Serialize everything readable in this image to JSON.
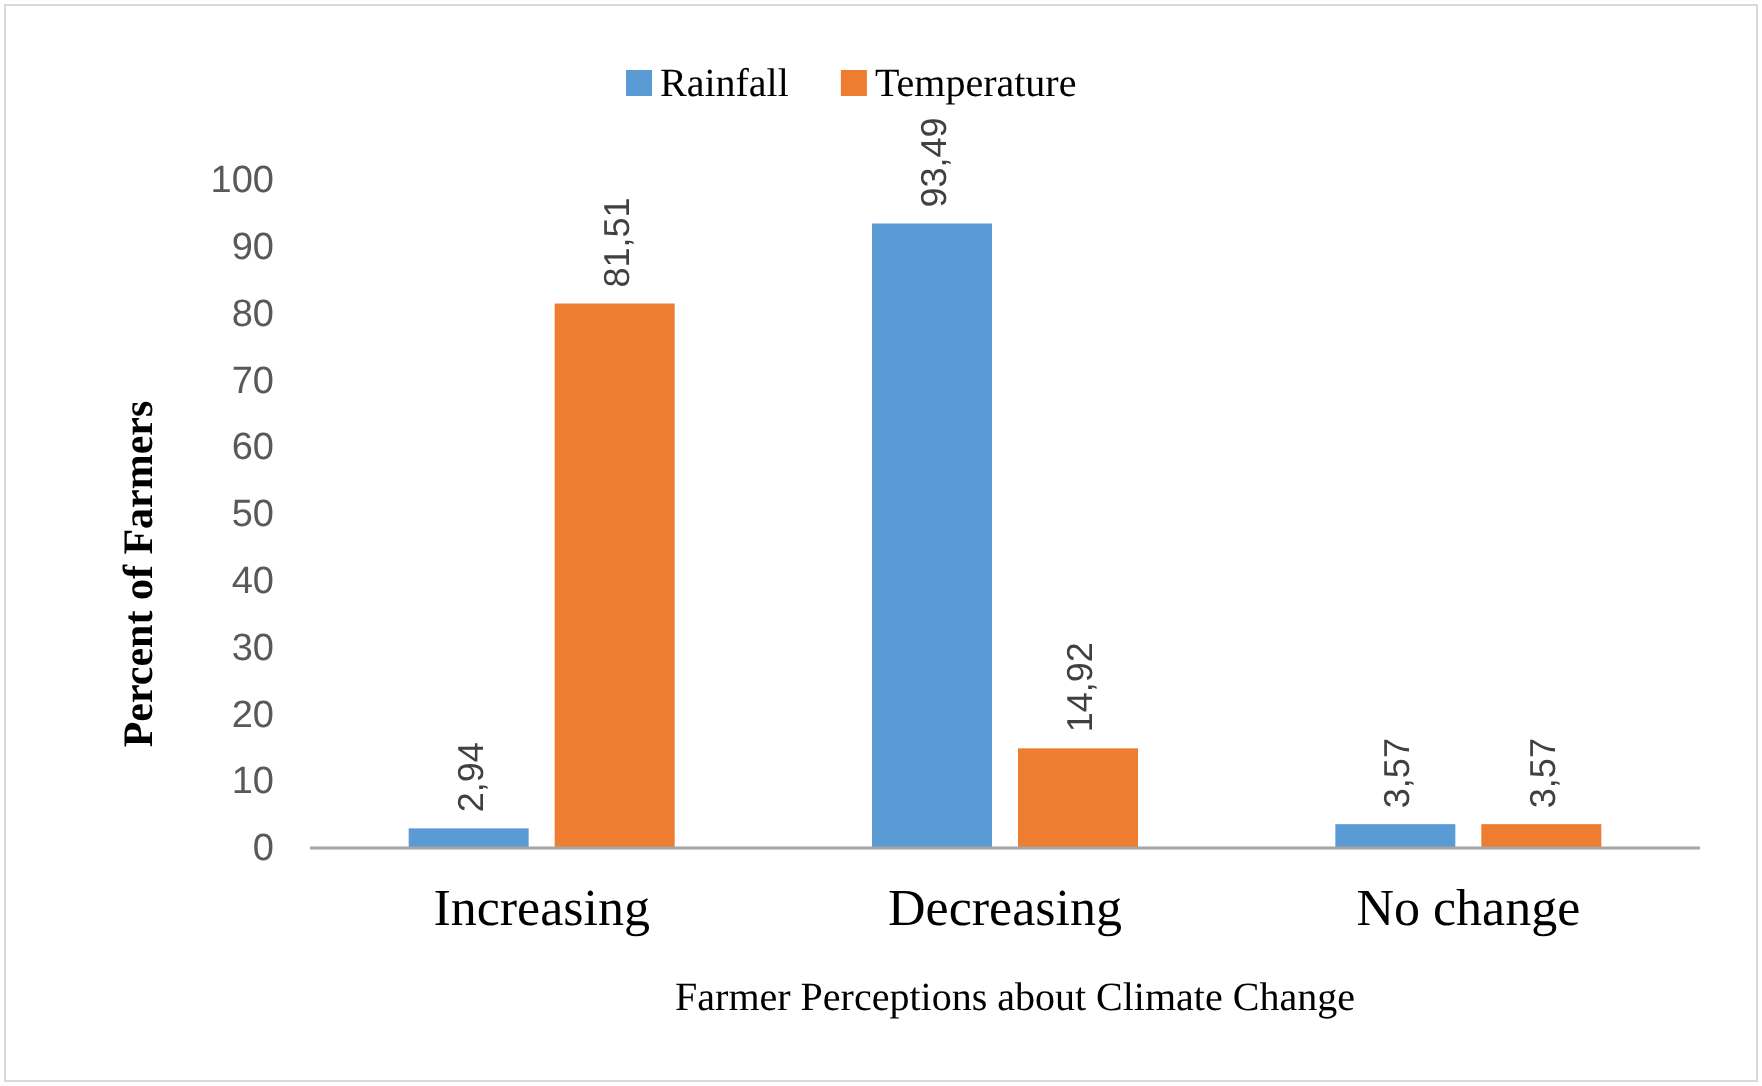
{
  "chart_data": {
    "type": "bar",
    "xlabel": "Farmer Perceptions about Climate Change",
    "ylabel": "Percent of Farmers",
    "categories": [
      "Increasing",
      "Decreasing",
      "No change"
    ],
    "series": [
      {
        "name": "Rainfall",
        "color": "#5b9bd5",
        "values": [
          2.94,
          93.49,
          3.57
        ],
        "value_labels": [
          "2,94",
          "93,49",
          "3,57"
        ]
      },
      {
        "name": "Temperature",
        "color": "#ed7d31",
        "values": [
          81.51,
          14.92,
          3.57
        ],
        "value_labels": [
          "81,51",
          "14,92",
          "3,57"
        ]
      }
    ],
    "ylim": [
      0,
      100
    ],
    "yticks": [
      0,
      10,
      20,
      30,
      40,
      50,
      60,
      70,
      80,
      90,
      100
    ],
    "grid": false,
    "legend": "top"
  }
}
